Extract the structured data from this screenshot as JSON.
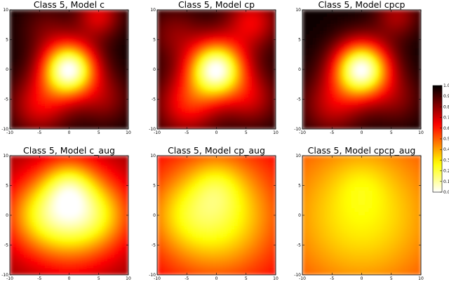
{
  "chart_data": {
    "type": "heatmap",
    "colormap": "hot_r",
    "x_ticks": [
      -10,
      -5,
      0,
      5,
      10
    ],
    "y_ticks": [
      10,
      5,
      0,
      -5,
      -10
    ],
    "xlim": [
      -10,
      10
    ],
    "ylim": [
      -10,
      10
    ],
    "panels": [
      {
        "title": "Class 5, Model c",
        "center": [
          0,
          0
        ],
        "spread": 3.2,
        "base": 0.02,
        "peak": 0.98,
        "blobs": [
          {
            "x": -5,
            "y": -6,
            "a": 0.3,
            "s": 3.5
          },
          {
            "x": 5,
            "y": 9,
            "a": 0.3,
            "s": 2.6
          },
          {
            "x": 6,
            "y": -5,
            "a": 0.18,
            "s": 3
          },
          {
            "x": -4,
            "y": 7,
            "a": 0.12,
            "s": 3
          }
        ]
      },
      {
        "title": "Class 5, Model cp",
        "center": [
          0,
          0
        ],
        "spread": 3.4,
        "base": 0.04,
        "peak": 0.98,
        "blobs": [
          {
            "x": -5,
            "y": -6,
            "a": 0.32,
            "s": 3.5
          },
          {
            "x": 6,
            "y": 8,
            "a": 0.3,
            "s": 3.0
          },
          {
            "x": 6,
            "y": -5,
            "a": 0.22,
            "s": 3
          },
          {
            "x": -7,
            "y": 6,
            "a": 0.15,
            "s": 3
          }
        ]
      },
      {
        "title": "Class 5, Model cpcp",
        "center": [
          0,
          0
        ],
        "spread": 3.3,
        "base": 0.02,
        "peak": 0.98,
        "blobs": [
          {
            "x": -5,
            "y": -6,
            "a": 0.25,
            "s": 3.5
          },
          {
            "x": 6,
            "y": 9,
            "a": 0.22,
            "s": 2.6
          },
          {
            "x": 6,
            "y": -5,
            "a": 0.15,
            "s": 3
          }
        ]
      },
      {
        "title": "Class 5, Model c_aug",
        "center": [
          0,
          0
        ],
        "spread": 5.5,
        "base": 0.22,
        "peak": 0.82,
        "blobs": [
          {
            "x": 0,
            "y": 5,
            "a": 0.25,
            "s": 3
          },
          {
            "x": -6,
            "y": 0,
            "a": 0.18,
            "s": 4
          },
          {
            "x": 6,
            "y": 0,
            "a": 0.18,
            "s": 4
          }
        ]
      },
      {
        "title": "Class 5, Model cp_aug",
        "center": [
          0,
          0
        ],
        "spread": 7.0,
        "base": 0.32,
        "peak": 0.78,
        "blobs": [
          {
            "x": 0,
            "y": 5,
            "a": 0.12,
            "s": 3
          },
          {
            "x": -6,
            "y": 0,
            "a": 0.1,
            "s": 4
          }
        ]
      },
      {
        "title": "Class 5, Model cpcp_aug",
        "center": [
          0,
          0
        ],
        "spread": 9.0,
        "base": 0.42,
        "peak": 0.72,
        "blobs": [
          {
            "x": 0,
            "y": 5,
            "a": 0.06,
            "s": 3
          }
        ]
      }
    ],
    "colorbar": {
      "range": [
        0.0,
        1.0
      ],
      "ticks": [
        "0.0",
        "0.1",
        "0.2",
        "0.3",
        "0.4",
        "0.5",
        "0.6",
        "0.7",
        "0.8",
        "0.9",
        "1.0"
      ]
    }
  }
}
